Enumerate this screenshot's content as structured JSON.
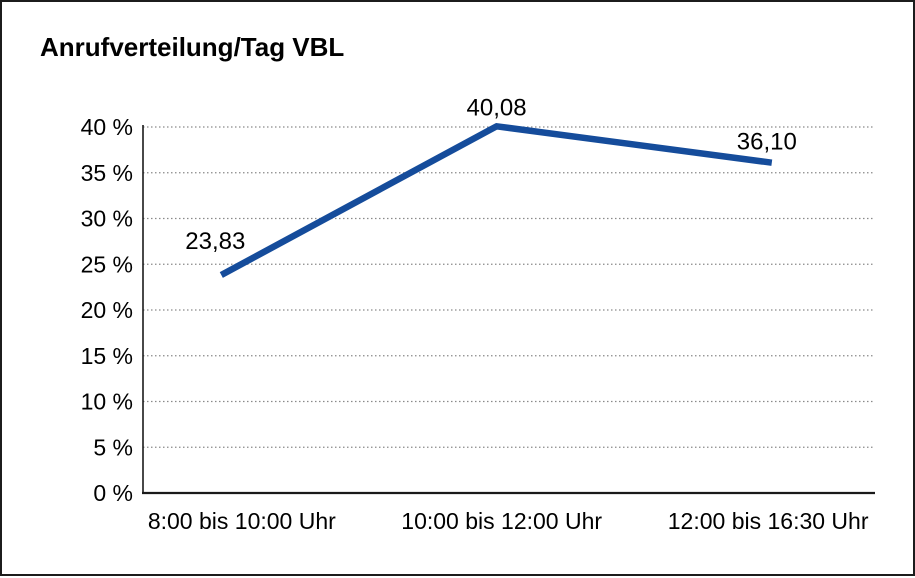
{
  "chart_data": {
    "type": "line",
    "title": "Anrufverteilung/Tag VBL",
    "categories": [
      "8:00 bis 10:00 Uhr",
      "10:00 bis 12:00 Uhr",
      "12:00 bis 16:30 Uhr"
    ],
    "values": [
      23.83,
      40.08,
      36.1
    ],
    "data_labels": [
      "23,83",
      "40,08",
      "36,10"
    ],
    "xlabel": "",
    "ylabel": "",
    "ylim": [
      0,
      40
    ],
    "ytick_step": 5,
    "ytick_labels": [
      "0 %",
      "5 %",
      "10 %",
      "15 %",
      "20 %",
      "25 %",
      "30 %",
      "35 %",
      "40 %"
    ],
    "grid": "horizontal-dotted",
    "legend": "none",
    "colors": {
      "line": "#154c9b",
      "grid": "#8a8a8a",
      "axis": "#1a1a1a",
      "text": "#000000",
      "background": "#ffffff",
      "frame_border": "#1c1c1c"
    }
  }
}
